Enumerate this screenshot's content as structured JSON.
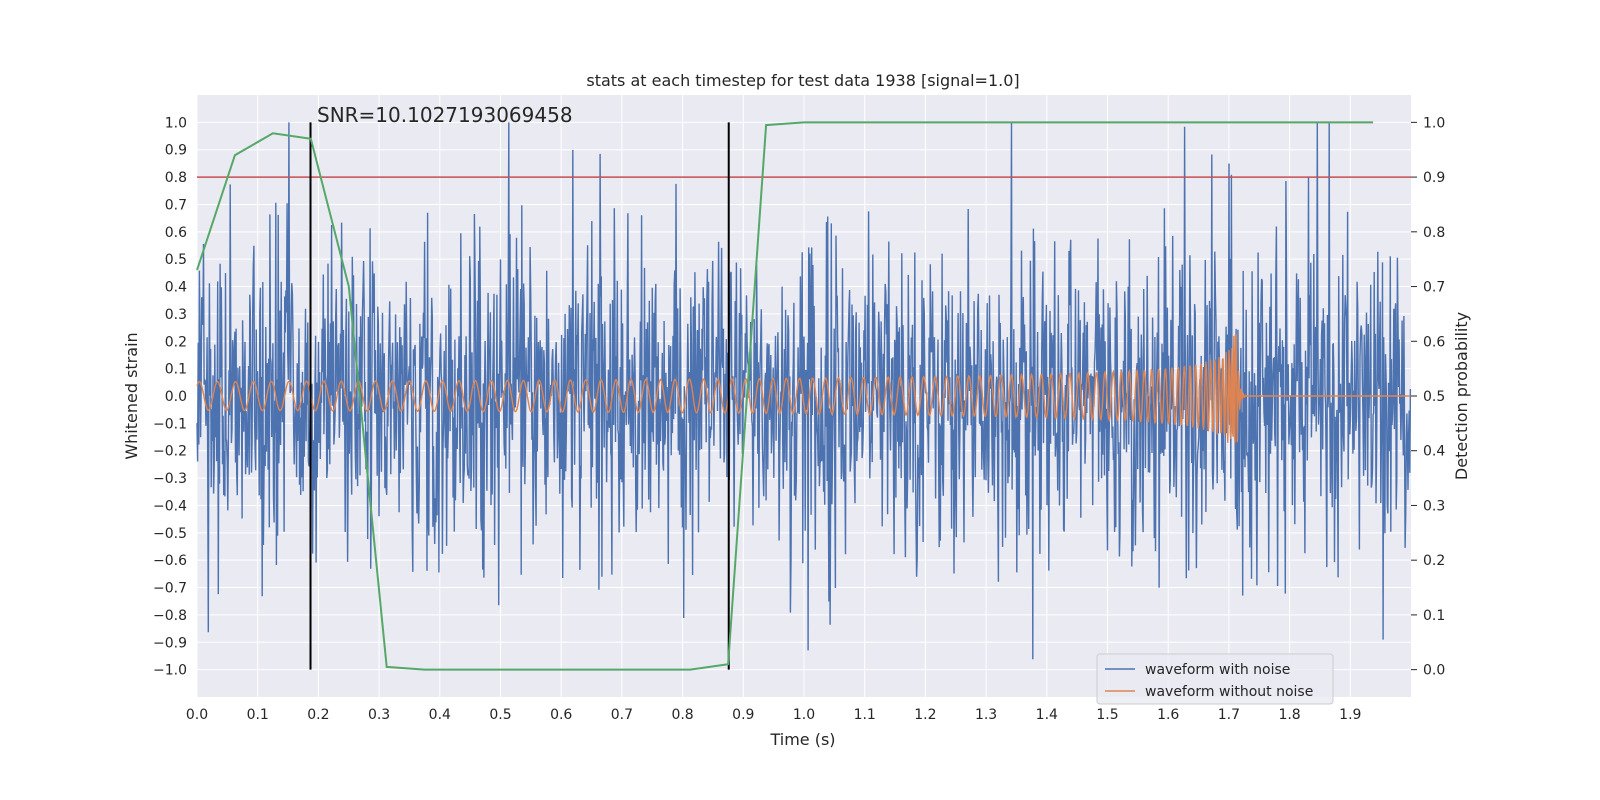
{
  "chart_data": {
    "type": "line",
    "title": "stats at each timestep for test data 1938 [signal=1.0]",
    "xlabel": "Time (s)",
    "ylabel_left": "Whitened strain",
    "ylabel_right": "Detection probability",
    "xlim": [
      0.0,
      2.0
    ],
    "ylim_left": [
      -1.1,
      1.1
    ],
    "ylim_right": [
      -0.05,
      1.05
    ],
    "x_ticks": [
      "0.0",
      "0.1",
      "0.2",
      "0.3",
      "0.4",
      "0.5",
      "0.6",
      "0.7",
      "0.8",
      "0.9",
      "1.0",
      "1.1",
      "1.2",
      "1.3",
      "1.4",
      "1.5",
      "1.6",
      "1.7",
      "1.8",
      "1.9"
    ],
    "y_left_ticks": [
      "1.0",
      "0.9",
      "0.8",
      "0.7",
      "0.6",
      "0.5",
      "0.4",
      "0.3",
      "0.2",
      "0.1",
      "0.0",
      "−0.1",
      "−0.2",
      "−0.3",
      "−0.4",
      "−0.5",
      "−0.6",
      "−0.7",
      "−0.8",
      "−0.9",
      "−1.0"
    ],
    "y_right_ticks": [
      "1.0",
      "0.9",
      "0.8",
      "0.7",
      "0.6",
      "0.5",
      "0.4",
      "0.3",
      "0.2",
      "0.1",
      "0.0"
    ],
    "grid": true,
    "legend_position": "bottom-right",
    "annotation": "SNR=10.1027193069458",
    "threshold": {
      "axis": "right",
      "value": 0.9,
      "color": "#c44e52"
    },
    "markers": [
      {
        "x": 0.187,
        "y_range": [
          -1.0,
          1.0
        ],
        "color": "#000000"
      },
      {
        "x": 0.876,
        "y_range": [
          -1.0,
          1.0
        ],
        "color": "#000000"
      }
    ],
    "series": [
      {
        "name": "waveform with noise",
        "axis": "left",
        "color": "#4c72b0",
        "description": "noisy whitened strain, approx. 2048 samples over 0-2 s, amplitude mostly within ±0.5 with spikes to ±1.0"
      },
      {
        "name": "waveform without noise",
        "axis": "left",
        "color": "#dd8452",
        "description": "chirp signal ~0.05 amplitude growing to ~0.37 at merger near 1.71 s, then flat at 0"
      },
      {
        "name": "",
        "axis": "right",
        "color": "#55a868",
        "x": [
          0.0,
          0.0625,
          0.125,
          0.1875,
          0.25,
          0.3125,
          0.375,
          0.4375,
          0.5,
          0.5625,
          0.625,
          0.6875,
          0.75,
          0.8125,
          0.875,
          0.9375,
          1.0,
          1.0625,
          1.125,
          1.1875,
          1.25,
          1.3125,
          1.375,
          1.4375,
          1.5,
          1.5625,
          1.625,
          1.6875,
          1.75,
          1.8125,
          1.875,
          1.9375
        ],
        "values": [
          0.73,
          0.94,
          0.98,
          0.97,
          0.7,
          0.005,
          0.0,
          0.0,
          0.0,
          0.0,
          0.0,
          0.0,
          0.0,
          0.0,
          0.01,
          0.995,
          1.0,
          1.0,
          1.0,
          1.0,
          1.0,
          1.0,
          1.0,
          1.0,
          1.0,
          1.0,
          1.0,
          1.0,
          1.0,
          1.0,
          1.0,
          1.0
        ]
      }
    ]
  }
}
